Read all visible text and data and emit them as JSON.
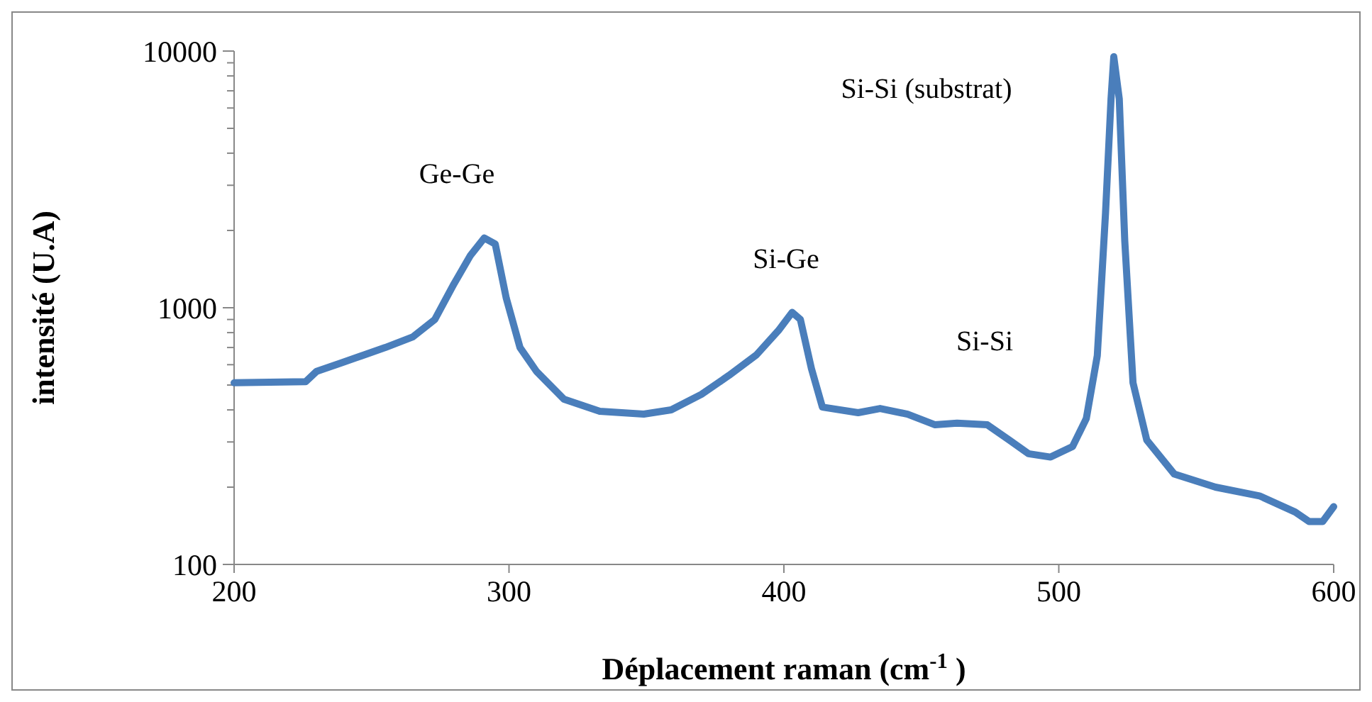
{
  "chart_data": {
    "type": "line",
    "xlabel": "Déplacement raman (cm$^{-1}$ )",
    "ylabel": "intensité (U.A)",
    "log": "y",
    "xlim": [
      200,
      600
    ],
    "xticks": [
      200,
      300,
      400,
      500,
      600
    ],
    "ylim": [
      100,
      10000
    ],
    "yticks": [
      100,
      {
        "value": 200,
        "label": null
      },
      {
        "value": 300,
        "label": null
      },
      {
        "value": 400,
        "label": null
      },
      {
        "value": 500,
        "label": null
      },
      {
        "value": 600,
        "label": null
      },
      {
        "value": 700,
        "label": null
      },
      {
        "value": 800,
        "label": null
      },
      {
        "value": 900,
        "label": null
      },
      1000,
      {
        "value": 2000,
        "label": null
      },
      {
        "value": 3000,
        "label": null
      },
      {
        "value": 4000,
        "label": null
      },
      {
        "value": 5000,
        "label": null
      },
      {
        "value": 6000,
        "label": null
      },
      {
        "value": 7000,
        "label": null
      },
      {
        "value": 8000,
        "label": null
      },
      {
        "value": 9000,
        "label": null
      },
      10000
    ],
    "grid": false,
    "marker": "none",
    "line_style": "solid",
    "annotations": [
      "Ge-Ge",
      "Si-Ge",
      "Si-Si",
      "Si-Si (substrat)"
    ],
    "series": [
      {
        "color": "#4a7ebb",
        "x": [
          200,
          226,
          230,
          239,
          255,
          265,
          273,
          280,
          286,
          291,
          295,
          299,
          304,
          310,
          320,
          333,
          349,
          359,
          370,
          380,
          390,
          398,
          403,
          406,
          410,
          414,
          427,
          435,
          445,
          455,
          463,
          474,
          482,
          489,
          497,
          505,
          510,
          514,
          517,
          519,
          520,
          522,
          524,
          527,
          532,
          542,
          557,
          573,
          586,
          591,
          596,
          600
        ],
        "values": [
          510,
          515,
          565,
          610,
          700,
          770,
          900,
          1240,
          1600,
          1870,
          1770,
          1090,
          700,
          565,
          440,
          395,
          385,
          400,
          460,
          545,
          655,
          815,
          960,
          900,
          580,
          410,
          390,
          405,
          385,
          350,
          355,
          350,
          305,
          270,
          262,
          288,
          370,
          650,
          2340,
          6500,
          9500,
          6500,
          1820,
          510,
          305,
          225,
          200,
          185,
          160,
          147,
          147,
          168
        ]
      }
    ]
  }
}
